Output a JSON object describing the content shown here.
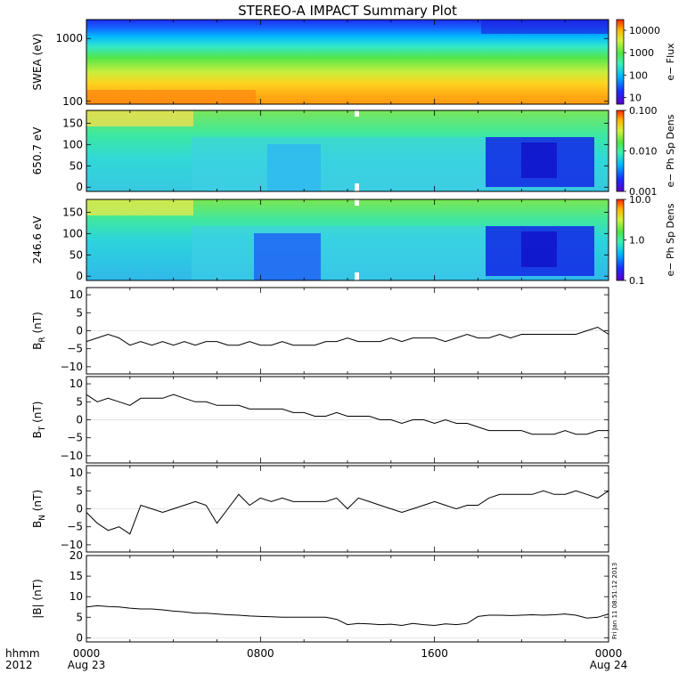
{
  "chart_data": {
    "title": "STEREO-A IMPACT Summary Plot",
    "x_axis": {
      "type": "time",
      "range": [
        "2012-08-23T00:00",
        "2012-08-24T00:00"
      ],
      "tick_labels": [
        {
          "value": "2012-08-23T00:00",
          "line1": "0000",
          "line2": "Aug 23"
        },
        {
          "value": "2012-08-23T08:00",
          "line1": "0800",
          "line2": ""
        },
        {
          "value": "2012-08-23T16:00",
          "line1": "1600",
          "line2": ""
        },
        {
          "value": "2012-08-24T00:00",
          "line1": "0000",
          "line2": "Aug 24"
        }
      ],
      "left_label_line1": "hhmm",
      "left_label_line2": "2012"
    },
    "side_stamp": "Fri Jan 11 08:51:12 2013",
    "panels": [
      {
        "type": "heatmap",
        "ylabel": "SWEA (eV)",
        "yscale": "log",
        "ylim": [
          90,
          2000
        ],
        "yticks": [
          100,
          1000
        ],
        "ytick_labels": [
          "100",
          "1000"
        ],
        "colorbar": {
          "label": "e− Flux",
          "scale": "log",
          "range": [
            5,
            30000
          ],
          "tick_labels": [
            "10",
            "100",
            "1000",
            "10000"
          ],
          "tick_values": [
            10,
            100,
            1000,
            10000
          ]
        }
      },
      {
        "type": "heatmap",
        "ylabel": "650.7 eV",
        "yscale": "linear",
        "ylim": [
          -10,
          180
        ],
        "yticks": [
          0,
          50,
          100,
          150
        ],
        "ytick_labels": [
          "0",
          "50",
          "100",
          "150"
        ],
        "colorbar": {
          "label": "e− Ph Sp Dens",
          "scale": "log",
          "range": [
            0.001,
            0.1
          ],
          "tick_labels": [
            "0.001",
            "0.010",
            "0.100"
          ],
          "tick_values": [
            0.001,
            0.01,
            0.1
          ]
        }
      },
      {
        "type": "heatmap",
        "ylabel": "246.6 eV",
        "yscale": "linear",
        "ylim": [
          -10,
          180
        ],
        "yticks": [
          0,
          50,
          100,
          150
        ],
        "ytick_labels": [
          "0",
          "50",
          "100",
          "150"
        ],
        "colorbar": {
          "label": "e− Ph Sp Dens",
          "scale": "log",
          "range": [
            0.1,
            10
          ],
          "tick_labels": [
            "0.1",
            "1.0",
            "10.0"
          ],
          "tick_values": [
            0.1,
            1,
            10
          ]
        }
      },
      {
        "type": "line",
        "ylabel": "B_R (nT)",
        "ylabel_main": "B",
        "ylabel_sub": "R",
        "ylabel_unit": " (nT)",
        "ylim": [
          -12,
          12
        ],
        "yticks": [
          -10,
          -5,
          0,
          5,
          10
        ],
        "ytick_labels": [
          "−10",
          "−5",
          "0",
          "5",
          "10"
        ],
        "x_hours": [
          0,
          0.5,
          1,
          1.5,
          2,
          2.5,
          3,
          3.5,
          4,
          4.5,
          5,
          5.5,
          6,
          6.5,
          7,
          7.5,
          8,
          8.5,
          9,
          9.5,
          10,
          10.5,
          11,
          11.5,
          12,
          12.5,
          13,
          13.5,
          14,
          14.5,
          15,
          15.5,
          16,
          16.5,
          17,
          17.5,
          18,
          18.5,
          19,
          19.5,
          20,
          20.5,
          21,
          21.5,
          22,
          22.5,
          23,
          23.5,
          24
        ],
        "values": [
          -3,
          -2,
          -1,
          -2,
          -4,
          -3,
          -4,
          -3,
          -4,
          -3,
          -4,
          -3,
          -3,
          -4,
          -4,
          -3,
          -4,
          -4,
          -3,
          -4,
          -4,
          -4,
          -3,
          -3,
          -2,
          -3,
          -3,
          -3,
          -2,
          -3,
          -2,
          -2,
          -2,
          -3,
          -2,
          -1,
          -2,
          -2,
          -1,
          -2,
          -1,
          -1,
          -1,
          -1,
          -1,
          -1,
          0,
          1,
          -1
        ]
      },
      {
        "type": "line",
        "ylabel": "B_T (nT)",
        "ylabel_main": "B",
        "ylabel_sub": "T",
        "ylabel_unit": " (nT)",
        "ylim": [
          -12,
          12
        ],
        "yticks": [
          -10,
          -5,
          0,
          5,
          10
        ],
        "ytick_labels": [
          "−10",
          "−5",
          "0",
          "5",
          "10"
        ],
        "x_hours": [
          0,
          0.5,
          1,
          1.5,
          2,
          2.5,
          3,
          3.5,
          4,
          4.5,
          5,
          5.5,
          6,
          6.5,
          7,
          7.5,
          8,
          8.5,
          9,
          9.5,
          10,
          10.5,
          11,
          11.5,
          12,
          12.5,
          13,
          13.5,
          14,
          14.5,
          15,
          15.5,
          16,
          16.5,
          17,
          17.5,
          18,
          18.5,
          19,
          19.5,
          20,
          20.5,
          21,
          21.5,
          22,
          22.5,
          23,
          23.5,
          24
        ],
        "values": [
          7,
          5,
          6,
          5,
          4,
          6,
          6,
          6,
          7,
          6,
          5,
          5,
          4,
          4,
          4,
          3,
          3,
          3,
          3,
          2,
          2,
          1,
          1,
          2,
          1,
          1,
          1,
          0,
          0,
          -1,
          0,
          0,
          -1,
          0,
          -1,
          -1,
          -2,
          -3,
          -3,
          -3,
          -3,
          -4,
          -4,
          -4,
          -3,
          -4,
          -4,
          -3,
          -3
        ]
      },
      {
        "type": "line",
        "ylabel": "B_N (nT)",
        "ylabel_main": "B",
        "ylabel_sub": "N",
        "ylabel_unit": " (nT)",
        "ylim": [
          -12,
          12
        ],
        "yticks": [
          -10,
          -5,
          0,
          5,
          10
        ],
        "ytick_labels": [
          "−10",
          "−5",
          "0",
          "5",
          "10"
        ],
        "x_hours": [
          0,
          0.5,
          1,
          1.5,
          2,
          2.5,
          3,
          3.5,
          4,
          4.5,
          5,
          5.5,
          6,
          6.5,
          7,
          7.5,
          8,
          8.5,
          9,
          9.5,
          10,
          10.5,
          11,
          11.5,
          12,
          12.5,
          13,
          13.5,
          14,
          14.5,
          15,
          15.5,
          16,
          16.5,
          17,
          17.5,
          18,
          18.5,
          19,
          19.5,
          20,
          20.5,
          21,
          21.5,
          22,
          22.5,
          23,
          23.5,
          24
        ],
        "values": [
          -1,
          -4,
          -6,
          -5,
          -7,
          1,
          0,
          -1,
          0,
          1,
          2,
          1,
          -4,
          0,
          4,
          1,
          3,
          2,
          3,
          2,
          2,
          2,
          2,
          3,
          0,
          3,
          2,
          1,
          0,
          -1,
          0,
          1,
          2,
          1,
          0,
          1,
          1,
          3,
          4,
          4,
          4,
          4,
          5,
          4,
          4,
          5,
          4,
          3,
          5
        ]
      },
      {
        "type": "line",
        "ylabel": "|B| (nT)",
        "ylabel_main": "|B| (nT)",
        "ylabel_sub": "",
        "ylabel_unit": "",
        "ylim": [
          -1,
          20
        ],
        "yticks": [
          0,
          5,
          10,
          15,
          20
        ],
        "ytick_labels": [
          "0",
          "5",
          "10",
          "15",
          "20"
        ],
        "x_hours": [
          0,
          0.5,
          1,
          1.5,
          2,
          2.5,
          3,
          3.5,
          4,
          4.5,
          5,
          5.5,
          6,
          6.5,
          7,
          7.5,
          8,
          8.5,
          9,
          9.5,
          10,
          10.5,
          11,
          11.5,
          12,
          12.5,
          13,
          13.5,
          14,
          14.5,
          15,
          15.5,
          16,
          16.5,
          17,
          17.5,
          18,
          18.5,
          19,
          19.5,
          20,
          20.5,
          21,
          21.5,
          22,
          22.5,
          23,
          23.5,
          24
        ],
        "values": [
          7.5,
          7.8,
          7.6,
          7.5,
          7.2,
          7,
          7,
          6.8,
          6.5,
          6.3,
          6,
          6,
          5.8,
          5.6,
          5.5,
          5.3,
          5.2,
          5.1,
          5,
          5,
          5,
          5,
          5,
          4.5,
          3.2,
          3.5,
          3.4,
          3.2,
          3.3,
          3,
          3.5,
          3.2,
          3,
          3.4,
          3.2,
          3.5,
          5.2,
          5.5,
          5.5,
          5.4,
          5.5,
          5.6,
          5.5,
          5.6,
          5.8,
          5.5,
          4.8,
          5,
          5.8
        ]
      }
    ]
  }
}
